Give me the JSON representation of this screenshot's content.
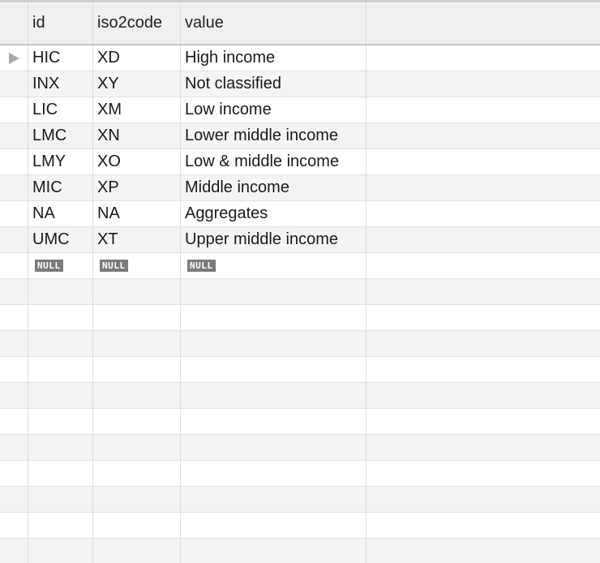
{
  "columns": [
    "id",
    "iso2code",
    "value"
  ],
  "rows": [
    {
      "id": "HIC",
      "iso2code": "XD",
      "value": "High income"
    },
    {
      "id": "INX",
      "iso2code": "XY",
      "value": "Not classified"
    },
    {
      "id": "LIC",
      "iso2code": "XM",
      "value": "Low income"
    },
    {
      "id": "LMC",
      "iso2code": "XN",
      "value": "Lower middle income"
    },
    {
      "id": "LMY",
      "iso2code": "XO",
      "value": "Low & middle income"
    },
    {
      "id": "MIC",
      "iso2code": "XP",
      "value": "Middle income"
    },
    {
      "id": "NA",
      "iso2code": "NA",
      "value": "Aggregates"
    },
    {
      "id": "UMC",
      "iso2code": "XT",
      "value": "Upper middle income"
    }
  ],
  "new_row": {
    "id": "NULL",
    "iso2code": "NULL",
    "value": "NULL"
  },
  "current_row_indicator": "triangle-right-icon"
}
